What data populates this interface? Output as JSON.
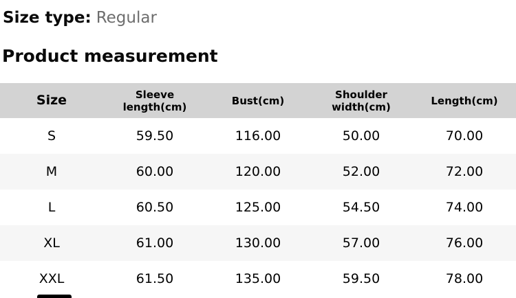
{
  "header": {
    "size_type_label": "Size type:",
    "size_type_value": "Regular",
    "section_title": "Product measurement"
  },
  "table": {
    "columns": [
      "Size",
      "Sleeve length(cm)",
      "Bust(cm)",
      "Shoulder width(cm)",
      "Length(cm)"
    ],
    "rows": [
      [
        "S",
        "59.50",
        "116.00",
        "50.00",
        "70.00"
      ],
      [
        "M",
        "60.00",
        "120.00",
        "52.00",
        "72.00"
      ],
      [
        "L",
        "60.50",
        "125.00",
        "54.50",
        "74.00"
      ],
      [
        "XL",
        "61.00",
        "130.00",
        "57.00",
        "76.00"
      ],
      [
        "XXL",
        "61.50",
        "135.00",
        "59.50",
        "78.00"
      ]
    ]
  },
  "colors": {
    "header_row_bg": "#d3d3d3",
    "zebra_row_bg": "#f6f6f6",
    "muted_text": "#6d6d6d",
    "text": "#000000"
  }
}
